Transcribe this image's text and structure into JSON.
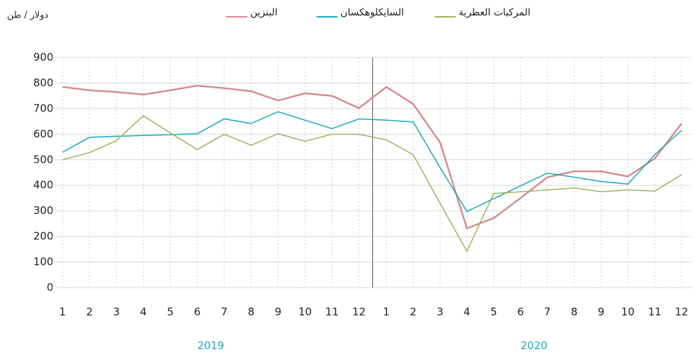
{
  "chart_data": {
    "type": "line",
    "unit_label": "دولار / طن",
    "categories": [
      "1",
      "2",
      "3",
      "4",
      "5",
      "6",
      "7",
      "8",
      "9",
      "10",
      "11",
      "12",
      "1",
      "2",
      "3",
      "4",
      "5",
      "6",
      "7",
      "8",
      "9",
      "10",
      "11",
      "12"
    ],
    "years": [
      "2019",
      "2020"
    ],
    "series": [
      {
        "name": "البنزين",
        "color": "#d4898c",
        "values": [
          785,
          772,
          765,
          755,
          772,
          790,
          780,
          768,
          732,
          760,
          750,
          702,
          785,
          718,
          568,
          232,
          272,
          350,
          432,
          455,
          455,
          435,
          505,
          642
        ]
      },
      {
        "name": "السايكلوهكسان",
        "color": "#17a9b8",
        "values": [
          530,
          588,
          592,
          595,
          598,
          602,
          660,
          642,
          688,
          655,
          622,
          660,
          655,
          648,
          470,
          298,
          348,
          398,
          448,
          432,
          415,
          405,
          520,
          615
        ]
      },
      {
        "name": "المركبات العطرية",
        "color": "#9bb55b",
        "values": [
          500,
          528,
          575,
          672,
          605,
          540,
          600,
          557,
          602,
          573,
          600,
          600,
          578,
          520,
          330,
          142,
          368,
          375,
          382,
          390,
          375,
          382,
          378,
          442
        ]
      }
    ],
    "ylim": [
      0,
      900
    ],
    "yticks": [
      0,
      100,
      200,
      300,
      400,
      500,
      600,
      700,
      800,
      900
    ],
    "grid": true
  }
}
